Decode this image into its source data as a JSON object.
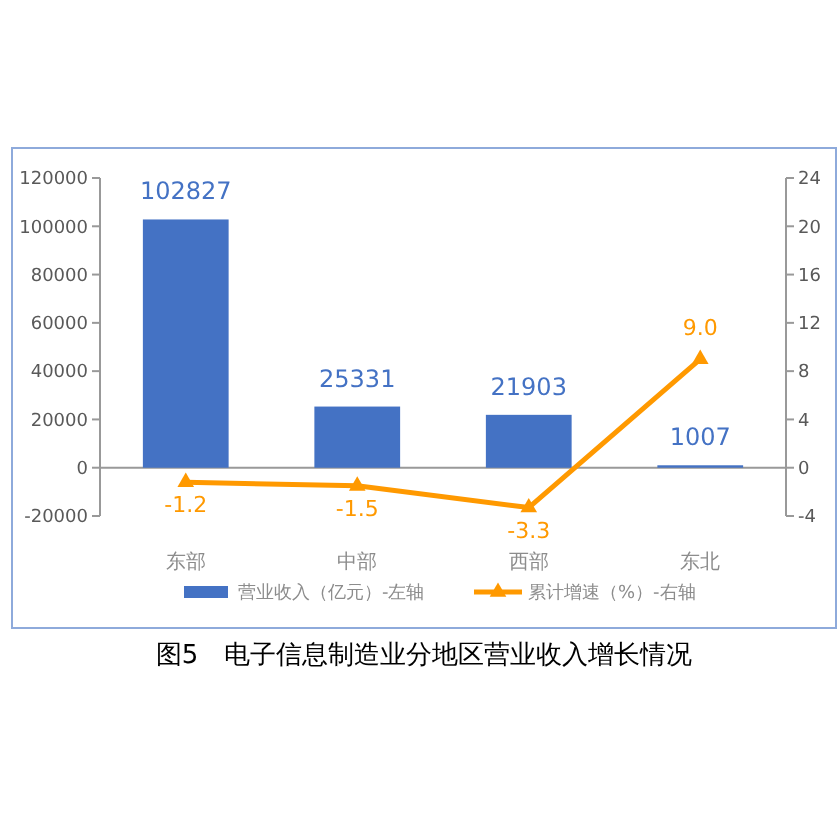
{
  "chart_data": {
    "type": "bar",
    "title": "图5　电子信息制造业分地区营业收入增长情况",
    "categories": [
      "东部",
      "中部",
      "西部",
      "东北"
    ],
    "series": [
      {
        "name": "营业收入（亿元）-左轴",
        "color": "#4472c4",
        "values": [
          102827,
          25331,
          21903,
          1007
        ]
      },
      {
        "name": "累计增速（%）-右轴",
        "type": "line",
        "axis": "y2",
        "color": "#ff9900",
        "values": [
          -1.2,
          -1.5,
          -3.3,
          9.0
        ],
        "value_labels": [
          "-1.2",
          "-1.5",
          "-3.3",
          "9.0"
        ],
        "marker": "triangle"
      }
    ],
    "ylim": [
      -20000,
      120000
    ],
    "yticks": [
      -20000,
      0,
      20000,
      40000,
      60000,
      80000,
      100000,
      120000
    ],
    "y2lim": [
      -4,
      24
    ],
    "y2ticks": [
      -4,
      0,
      4,
      8,
      12,
      16,
      20,
      24
    ],
    "data_labels": true,
    "legend": "bottom"
  }
}
